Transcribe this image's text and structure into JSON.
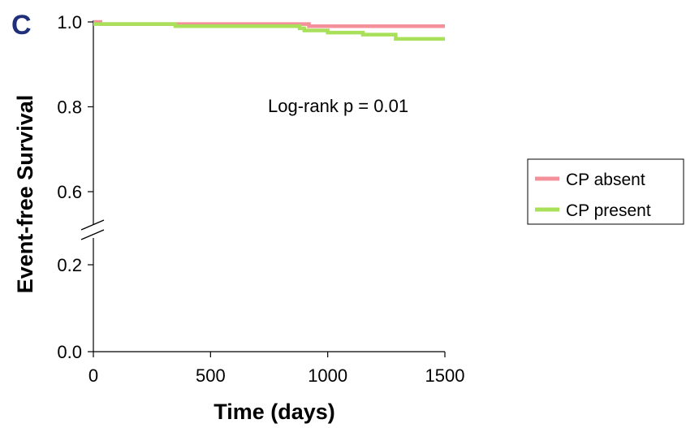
{
  "panel_label": "C",
  "chart_data": {
    "type": "line",
    "title": "",
    "xlabel": "Time (days)",
    "ylabel": "Event-free Survival",
    "xlim": [
      0,
      1500
    ],
    "xticks": [
      0,
      500,
      1000,
      1500
    ],
    "xtick_labels": [
      "0",
      "500",
      "1000",
      "1500"
    ],
    "yticks": [
      0.0,
      0.2,
      0.6,
      0.8,
      1.0
    ],
    "ytick_labels": [
      "0.0",
      "0.2",
      "0.6",
      "0.8",
      "1.0"
    ],
    "y_axis_break": [
      0.2,
      0.6
    ],
    "grid": false,
    "legend_position": "right",
    "annotation": "Log-rank p = 0.01",
    "series": [
      {
        "name": "CP absent",
        "color": "#f4909a",
        "step": true,
        "x": [
          0,
          30,
          350,
          920,
          1500
        ],
        "y": [
          1.0,
          0.995,
          0.995,
          0.99,
          0.99
        ]
      },
      {
        "name": "CP present",
        "color": "#a8e05a",
        "step": true,
        "x": [
          0,
          350,
          880,
          900,
          1000,
          1150,
          1290,
          1500
        ],
        "y": [
          0.995,
          0.99,
          0.985,
          0.98,
          0.975,
          0.97,
          0.96,
          0.96
        ]
      }
    ]
  }
}
